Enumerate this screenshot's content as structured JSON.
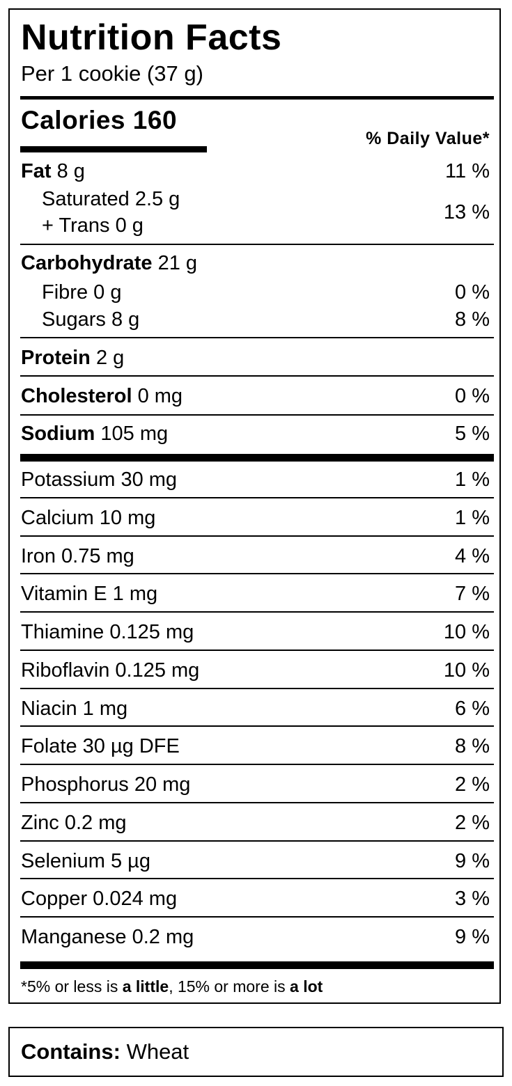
{
  "label": {
    "title": "Nutrition Facts",
    "serving": "Per 1 cookie (37 g)",
    "calories_label": "Calories",
    "calories_value": "160",
    "daily_value_header": "% Daily Value*",
    "nutrients": {
      "fat": {
        "name": "Fat",
        "amount": "8 g",
        "dv": "11 %"
      },
      "saturated": {
        "name": "Saturated 2.5 g"
      },
      "trans": {
        "name": "+ Trans 0 g"
      },
      "sat_trans_dv": "13 %",
      "carbohydrate": {
        "name": "Carbohydrate",
        "amount": "21 g"
      },
      "fibre": {
        "name": "Fibre 0 g",
        "dv": "0 %"
      },
      "sugars": {
        "name": "Sugars 8 g",
        "dv": "8 %"
      },
      "protein": {
        "name": "Protein",
        "amount": "2 g"
      },
      "cholesterol": {
        "name": "Cholesterol",
        "amount": "0 mg",
        "dv": "0 %"
      },
      "sodium": {
        "name": "Sodium",
        "amount": "105 mg",
        "dv": "5 %"
      }
    },
    "minerals": [
      {
        "name": "Potassium 30 mg",
        "dv": "1 %"
      },
      {
        "name": "Calcium 10 mg",
        "dv": "1 %"
      },
      {
        "name": "Iron 0.75 mg",
        "dv": "4 %"
      },
      {
        "name": "Vitamin E 1 mg",
        "dv": "7 %"
      },
      {
        "name": "Thiamine 0.125 mg",
        "dv": "10 %"
      },
      {
        "name": "Riboflavin 0.125 mg",
        "dv": "10 %"
      },
      {
        "name": "Niacin 1 mg",
        "dv": "6 %"
      },
      {
        "name": "Folate 30 µg DFE",
        "dv": "8 %"
      },
      {
        "name": "Phosphorus 20 mg",
        "dv": "2 %"
      },
      {
        "name": "Zinc 0.2 mg",
        "dv": "2 %"
      },
      {
        "name": "Selenium 5 µg",
        "dv": "9 %"
      },
      {
        "name": "Copper 0.024 mg",
        "dv": "3 %"
      },
      {
        "name": "Manganese 0.2 mg",
        "dv": "9 %"
      }
    ],
    "footnote": {
      "part1": "*5% or less is ",
      "bold1": "a little",
      "part2": ", 15% or more is ",
      "bold2": "a lot"
    }
  },
  "allergen": {
    "label": "Contains:",
    "value": "Wheat"
  }
}
